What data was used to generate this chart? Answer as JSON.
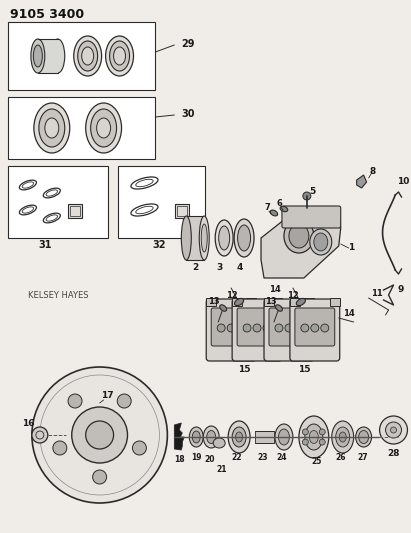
{
  "title": "9105 3400",
  "bg_color": "#f0ede8",
  "line_color": "#2a2a2a",
  "brand_label": "KELSEY HAYES",
  "fig_w": 4.11,
  "fig_h": 5.33,
  "dpi": 100
}
